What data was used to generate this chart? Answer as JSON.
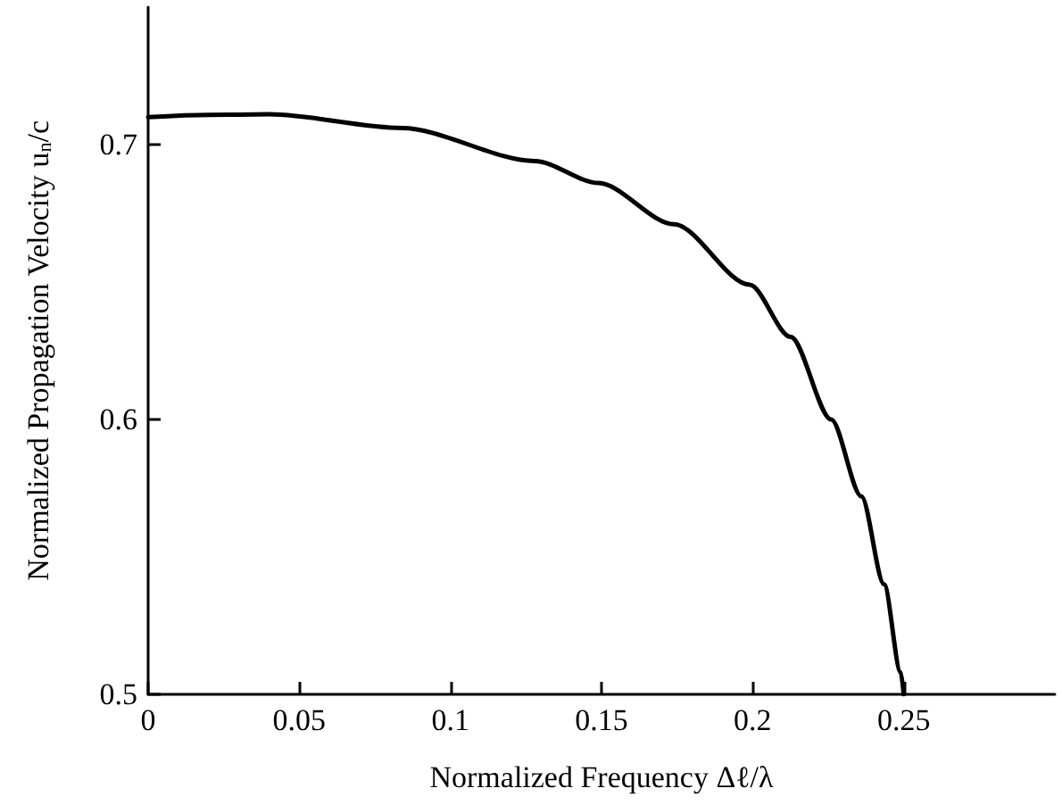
{
  "chart_data": {
    "type": "line",
    "xlabel": "Normalized Frequency Δℓ/λ",
    "ylabel": "Normalized Propagation Velocity u$_{n}$/c",
    "x": [
      0,
      0.02,
      0.04,
      0.084,
      0.128,
      0.149,
      0.174,
      0.199,
      0.2126,
      0.226,
      0.236,
      0.2435,
      0.249,
      0.25
    ],
    "series": [
      {
        "color": "#000000",
        "values": [
          0.71,
          0.7108,
          0.711,
          0.706,
          0.694,
          0.686,
          0.671,
          0.649,
          0.63,
          0.6,
          0.572,
          0.54,
          0.508,
          0.5
        ]
      }
    ],
    "xlim": [
      0,
      0.3
    ],
    "xticks": [
      0,
      0.05,
      0.1,
      0.15,
      0.2,
      0.25
    ],
    "ylim": [
      0.5,
      0.75
    ],
    "yticks": [
      0.5,
      0.6,
      0.7
    ],
    "grid": false,
    "marker": "none",
    "line_style": "solid"
  }
}
